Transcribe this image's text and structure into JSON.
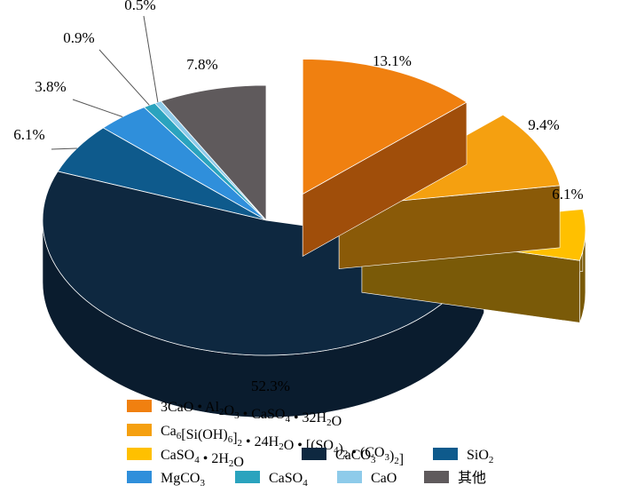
{
  "chart_data": {
    "type": "pie",
    "style": "3d-exploded",
    "series": [
      {
        "label_parts": [
          [
            "3CaO • Al",
            "n"
          ],
          [
            "2",
            "s"
          ],
          [
            "O",
            "n"
          ],
          [
            "3",
            "s"
          ],
          [
            " • CaSO",
            "n"
          ],
          [
            "4",
            "s"
          ],
          [
            " • 32H",
            "n"
          ],
          [
            "2",
            "s"
          ],
          [
            "O",
            "n"
          ]
        ],
        "value": 13.1,
        "percent_label": "13.1%",
        "color": "#F08010",
        "side_color": "#A04E0A"
      },
      {
        "label_parts": [
          [
            "Ca",
            "n"
          ],
          [
            "6",
            "s"
          ],
          [
            "[Si(OH)",
            "n"
          ],
          [
            "6",
            "s"
          ],
          [
            "]",
            "n"
          ],
          [
            "2",
            "s"
          ],
          [
            " • 24H",
            "n"
          ],
          [
            "2",
            "s"
          ],
          [
            "O • [(SO",
            "n"
          ],
          [
            "4",
            "s"
          ],
          [
            ")",
            "n"
          ],
          [
            "2",
            "s"
          ],
          [
            " • (CO",
            "n"
          ],
          [
            "3",
            "s"
          ],
          [
            ")",
            "n"
          ],
          [
            "2",
            "s"
          ],
          [
            "]",
            "n"
          ]
        ],
        "value": 9.4,
        "percent_label": "9.4%",
        "color": "#F5A010",
        "side_color": "#8A5A08"
      },
      {
        "label_parts": [
          [
            "CaSO",
            "n"
          ],
          [
            "4",
            "s"
          ],
          [
            " • 2H",
            "n"
          ],
          [
            "2",
            "s"
          ],
          [
            "O",
            "n"
          ]
        ],
        "value": 6.1,
        "percent_label": "6.1%",
        "color": "#FFC000",
        "side_color": "#7A5A08"
      },
      {
        "label_parts": [
          [
            "CaCO",
            "n"
          ],
          [
            "3",
            "s"
          ]
        ],
        "value": 52.3,
        "percent_label": "52.3%",
        "color": "#0E2840",
        "side_color": "#0A1C2E"
      },
      {
        "label_parts": [
          [
            "SiO",
            "n"
          ],
          [
            "2",
            "s"
          ]
        ],
        "value": 6.1,
        "percent_label": "6.1%",
        "color": "#0E5A8C",
        "side_color": "#083A5C"
      },
      {
        "label_parts": [
          [
            "MgCO",
            "n"
          ],
          [
            "3",
            "s"
          ]
        ],
        "value": 3.8,
        "percent_label": "3.8%",
        "color": "#2F8FDB",
        "side_color": "#1A5E96"
      },
      {
        "label_parts": [
          [
            "CaSO",
            "n"
          ],
          [
            "4",
            "s"
          ]
        ],
        "value": 0.9,
        "percent_label": "0.9%",
        "color": "#2AA3BE",
        "side_color": "#1A6E80"
      },
      {
        "label_parts": [
          [
            "CaO",
            "n"
          ]
        ],
        "value": 0.5,
        "percent_label": "0.5%",
        "color": "#8ECBEA",
        "side_color": "#5A92B0"
      },
      {
        "label_parts": [
          [
            "其他",
            "n"
          ]
        ],
        "value": 7.8,
        "percent_label": "7.8%",
        "color": "#5F5A5C",
        "side_color": "#3C383A"
      }
    ],
    "legend_position": "bottom"
  }
}
